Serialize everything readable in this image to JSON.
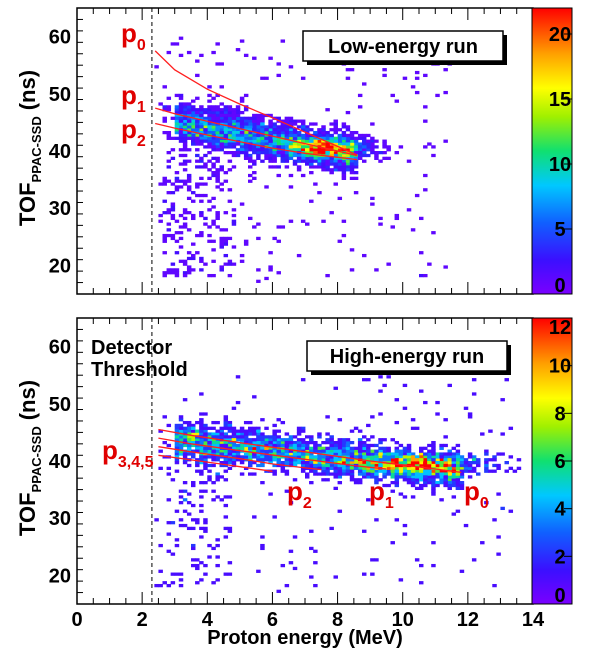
{
  "chart_data": [
    {
      "type": "heatmap",
      "title": "",
      "legend_box": "Low-energy run",
      "xlabel": "",
      "ylabel_main": "TOF",
      "ylabel_sub": "PPAC-SSD",
      "ylabel_unit": "(ns)",
      "xlim": [
        0,
        14
      ],
      "ylim": [
        15,
        65
      ],
      "xticks": [
        0,
        2,
        4,
        6,
        8,
        10,
        12,
        14
      ],
      "yticks": [
        20,
        30,
        40,
        50,
        60
      ],
      "zlim": [
        0,
        22
      ],
      "zticks": [
        0,
        5,
        10,
        15,
        20
      ],
      "threshold_x": 2.3,
      "cluster": {
        "x_start": 3.0,
        "x_end": 8.6,
        "y_at_start": 45.0,
        "y_at_end": 39.3,
        "peak_x": 7.7,
        "peak_y": 40.5,
        "max_count": 22
      },
      "curves": [
        {
          "name": "p0",
          "points": [
            [
              2.4,
              57.5
            ],
            [
              3.0,
              54.2
            ],
            [
              4.0,
              50.8
            ],
            [
              5.0,
              48.2
            ],
            [
              6.0,
              45.8
            ],
            [
              7.0,
              43.3
            ],
            [
              8.0,
              40.8
            ],
            [
              8.6,
              39.3
            ]
          ]
        },
        {
          "name": "p1",
          "points": [
            [
              2.4,
              47.5
            ],
            [
              3.0,
              46.5
            ],
            [
              4.0,
              45.2
            ],
            [
              5.0,
              43.9
            ],
            [
              6.0,
              42.6
            ],
            [
              7.0,
              41.3
            ],
            [
              8.0,
              40.0
            ],
            [
              8.6,
              39.2
            ]
          ]
        },
        {
          "name": "p2",
          "points": [
            [
              2.4,
              44.8
            ],
            [
              3.0,
              44.0
            ],
            [
              4.0,
              42.8
            ],
            [
              5.0,
              41.6
            ],
            [
              6.0,
              40.5
            ],
            [
              7.0,
              39.6
            ],
            [
              8.0,
              38.9
            ],
            [
              8.6,
              38.5
            ]
          ]
        }
      ],
      "curve_labels": [
        {
          "base": "p",
          "sub": "0"
        },
        {
          "base": "p",
          "sub": "1"
        },
        {
          "base": "p",
          "sub": "2"
        }
      ]
    },
    {
      "type": "heatmap",
      "title": "",
      "legend_box": "High-energy run",
      "xlabel": "Proton energy (MeV)",
      "ylabel_main": "TOF",
      "ylabel_sub": "PPAC-SSD",
      "ylabel_unit": "(ns)",
      "xlim": [
        0,
        14
      ],
      "ylim": [
        15,
        65
      ],
      "xticks": [
        0,
        2,
        4,
        6,
        8,
        10,
        12,
        14
      ],
      "yticks": [
        20,
        30,
        40,
        50,
        60
      ],
      "zlim": [
        0,
        12
      ],
      "zticks": [
        0,
        2,
        4,
        6,
        8,
        10,
        12
      ],
      "threshold_x": 2.3,
      "threshold_label": [
        "Detector",
        "Threshold"
      ],
      "cluster": {
        "x_start": 3.0,
        "x_end": 11.8,
        "y_at_start": 43.5,
        "y_at_end": 38.2,
        "peak_x": 10.5,
        "peak_y": 39.5,
        "max_count": 12
      },
      "curves": [
        {
          "name": "p0",
          "points": [
            [
              2.5,
              45.5
            ],
            [
              3.5,
              44.5
            ],
            [
              5.0,
              43.2
            ],
            [
              7.0,
              41.6
            ],
            [
              9.0,
              40.0
            ],
            [
              11.0,
              38.6
            ],
            [
              11.8,
              38.0
            ]
          ]
        },
        {
          "name": "p1",
          "points": [
            [
              2.5,
              44.0
            ],
            [
              3.5,
              43.0
            ],
            [
              5.0,
              41.8
            ],
            [
              7.0,
              40.3
            ],
            [
              8.5,
              39.2
            ],
            [
              9.5,
              38.6
            ]
          ]
        },
        {
          "name": "p2",
          "points": [
            [
              2.5,
              42.5
            ],
            [
              3.5,
              41.6
            ],
            [
              5.0,
              40.4
            ],
            [
              6.0,
              39.5
            ],
            [
              7.0,
              38.8
            ],
            [
              7.5,
              38.5
            ]
          ]
        },
        {
          "name": "p345",
          "points": [
            [
              2.5,
              41.0
            ],
            [
              3.5,
              40.2
            ],
            [
              4.5,
              39.4
            ],
            [
              5.0,
              39.0
            ],
            [
              6.0,
              38.2
            ]
          ]
        }
      ],
      "curve_labels": [
        {
          "base": "p",
          "sub": "3,4,5"
        },
        {
          "base": "p",
          "sub": "2"
        },
        {
          "base": "p",
          "sub": "1"
        },
        {
          "base": "p",
          "sub": "0"
        }
      ]
    }
  ]
}
